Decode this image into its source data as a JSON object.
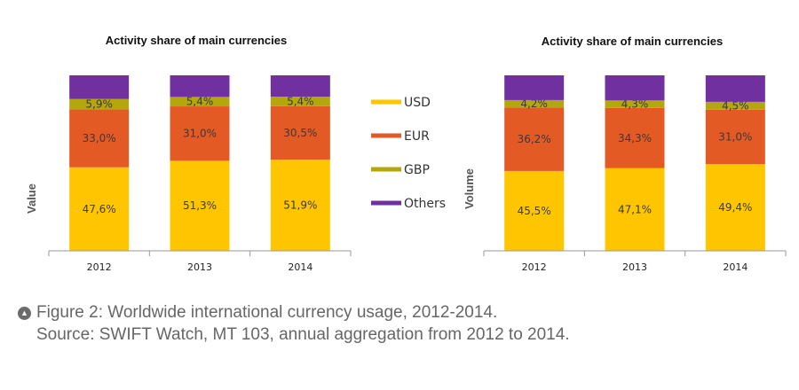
{
  "colors": {
    "USD": "#FFC600",
    "EUR": "#E45A24",
    "GBP": "#B4A70E",
    "Others": "#7030A0",
    "axis": "#999999"
  },
  "legend": {
    "items": [
      {
        "key": "USD",
        "label": "USD"
      },
      {
        "key": "EUR",
        "label": "EUR"
      },
      {
        "key": "GBP",
        "label": "GBP"
      },
      {
        "key": "Others",
        "label": "Others"
      }
    ]
  },
  "chart_data": [
    {
      "type": "bar",
      "stacked": true,
      "title": "Activity share of main currencies",
      "ylabel": "Value",
      "xlabel": "",
      "ylim": [
        0,
        100
      ],
      "categories": [
        "2012",
        "2013",
        "2014"
      ],
      "series": [
        {
          "name": "USD",
          "values": [
            47.6,
            51.3,
            51.9
          ],
          "labels": [
            "47,6%",
            "51,3%",
            "51,9%"
          ]
        },
        {
          "name": "EUR",
          "values": [
            33.0,
            31.0,
            30.5
          ],
          "labels": [
            "33,0%",
            "31,0%",
            "30,5%"
          ]
        },
        {
          "name": "GBP",
          "values": [
            5.9,
            5.4,
            5.4
          ],
          "labels": [
            "5,9%",
            "5,4%",
            "5,4%"
          ]
        },
        {
          "name": "Others",
          "values": [
            13.5,
            12.3,
            12.2
          ],
          "labels": [
            "",
            "",
            ""
          ]
        }
      ]
    },
    {
      "type": "bar",
      "stacked": true,
      "title": "Activity share of main currencies",
      "ylabel": "Volume",
      "xlabel": "",
      "ylim": [
        0,
        100
      ],
      "categories": [
        "2012",
        "2013",
        "2014"
      ],
      "series": [
        {
          "name": "USD",
          "values": [
            45.5,
            47.1,
            49.4
          ],
          "labels": [
            "45,5%",
            "47,1%",
            "49,4%"
          ]
        },
        {
          "name": "EUR",
          "values": [
            36.2,
            34.3,
            31.0
          ],
          "labels": [
            "36,2%",
            "34,3%",
            "31,0%"
          ]
        },
        {
          "name": "GBP",
          "values": [
            4.2,
            4.3,
            4.5
          ],
          "labels": [
            "4,2%",
            "4,3%",
            "4,5%"
          ]
        },
        {
          "name": "Others",
          "values": [
            14.1,
            14.3,
            15.1
          ],
          "labels": [
            "",
            "",
            ""
          ]
        }
      ]
    }
  ],
  "caption": {
    "icon": "up-arrow-circle-icon",
    "line1": "Figure 2: Worldwide international currency usage, 2012-2014.",
    "line2": "Source: SWIFT Watch, MT 103, annual aggregation from 2012 to 2014."
  }
}
